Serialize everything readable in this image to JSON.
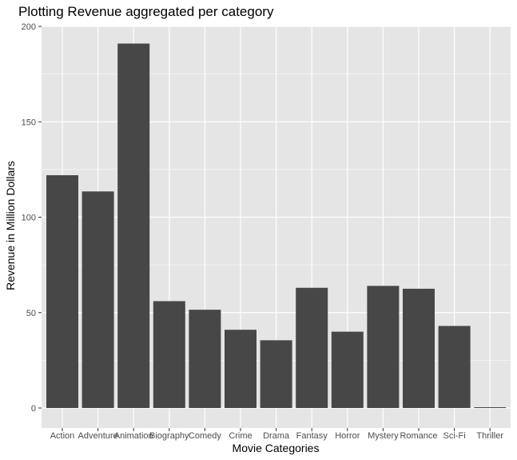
{
  "chart_data": {
    "type": "bar",
    "title": "Plotting Revenue aggregated per category",
    "xlabel": "Movie Categories",
    "ylabel": "Revenue in Million Dollars",
    "categories": [
      "Action",
      "Adventure",
      "Animation",
      "Biography",
      "Comedy",
      "Crime",
      "Drama",
      "Fantasy",
      "Horror",
      "Mystery",
      "Romance",
      "Sci-Fi",
      "Thriller"
    ],
    "values": [
      122,
      113.5,
      191,
      56,
      51.5,
      41,
      35.5,
      63,
      40,
      64,
      62.5,
      43,
      0.3
    ],
    "yticks": [
      0,
      50,
      100,
      150,
      200
    ],
    "ylim": [
      0,
      200
    ],
    "grid": true,
    "colors": {
      "panel": "#e5e5e5",
      "grid": "#ffffff",
      "bar": "#474747",
      "tick_text": "#4d4d4d"
    }
  }
}
